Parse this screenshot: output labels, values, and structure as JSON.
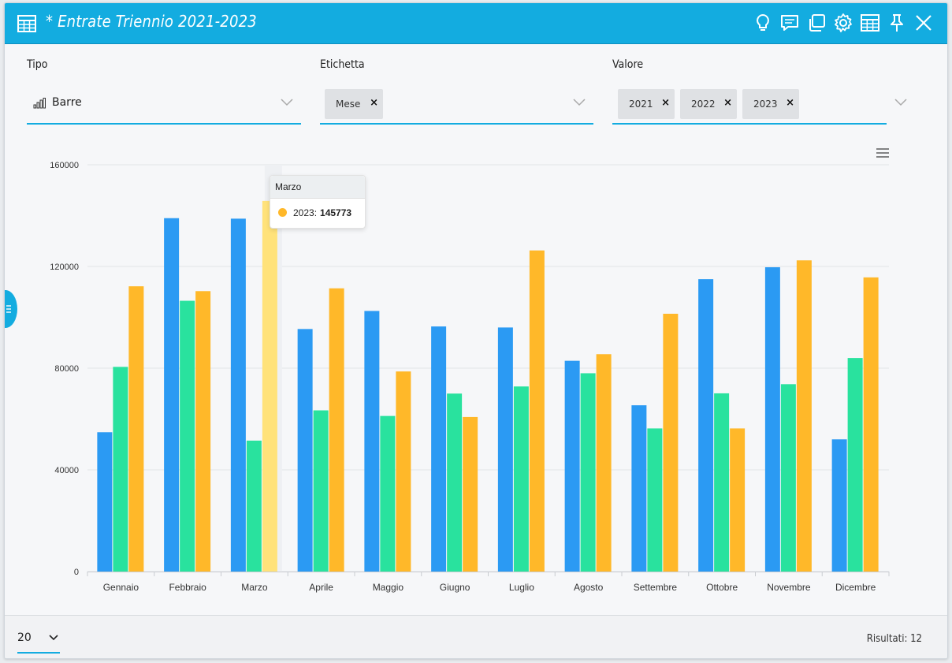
{
  "window": {
    "title": "* Entrate Triennio 2021-2023",
    "toolbar_icons": [
      "lightbulb-icon",
      "comment-icon",
      "copy-icon",
      "gear-icon",
      "table-icon",
      "pin-icon",
      "close-icon"
    ]
  },
  "filters": {
    "tipo": {
      "label": "Tipo",
      "value": "Barre",
      "icon": "bar-chart-icon"
    },
    "etichetta": {
      "label": "Etichetta",
      "chips": [
        "Mese"
      ]
    },
    "valore": {
      "label": "Valore",
      "chips": [
        "2021",
        "2022",
        "2023"
      ]
    }
  },
  "colors": {
    "accent": "#13ace0",
    "s2021": "#2b9af3",
    "s2022": "#29e29e",
    "s2023": "#ffb829",
    "s2023_hover": "#ffe27a"
  },
  "chart_data": {
    "type": "bar",
    "categories": [
      "Gennaio",
      "Febbraio",
      "Marzo",
      "Aprile",
      "Maggio",
      "Giugno",
      "Luglio",
      "Agosto",
      "Settembre",
      "Ottobre",
      "Novembre",
      "Dicembre"
    ],
    "series": [
      {
        "name": "2021",
        "values": [
          54800,
          139000,
          138800,
          95400,
          102500,
          96400,
          96000,
          82900,
          65400,
          115000,
          119700,
          52000
        ]
      },
      {
        "name": "2022",
        "values": [
          80500,
          106500,
          51500,
          63400,
          61200,
          70000,
          72800,
          78000,
          56300,
          70100,
          73700,
          84000
        ]
      },
      {
        "name": "2023",
        "values": [
          112200,
          110300,
          145773,
          111400,
          78700,
          60800,
          126300,
          85500,
          101400,
          56300,
          122400,
          115700
        ]
      }
    ],
    "yticks": [
      "0",
      "40000",
      "80000",
      "120000",
      "160000"
    ],
    "ylim": [
      0,
      160000
    ],
    "grid": true,
    "highlight": {
      "category_index": 2,
      "series_index": 2
    }
  },
  "tooltip": {
    "title": "Marzo",
    "series": "2023:",
    "value": "145773"
  },
  "footer": {
    "page_size": "20",
    "results": "Risultati: 12"
  }
}
